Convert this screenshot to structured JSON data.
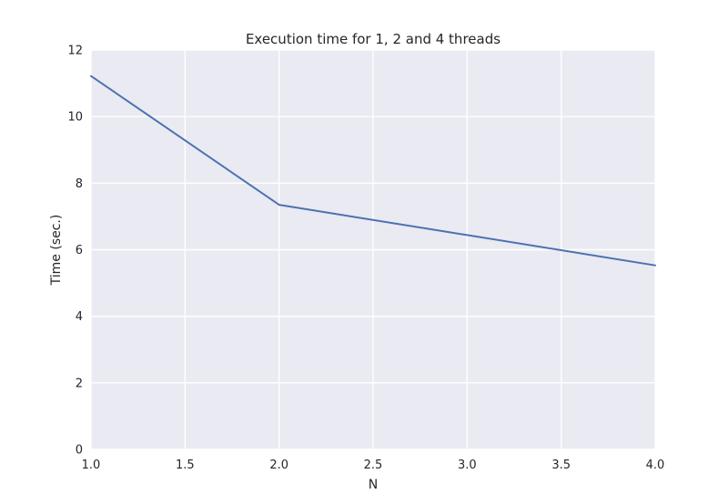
{
  "chart_data": {
    "type": "line",
    "title": "Execution time for 1, 2 and 4 threads",
    "xlabel": "N",
    "ylabel": "Time (sec.)",
    "xlim": [
      1.0,
      4.0
    ],
    "ylim": [
      0,
      12
    ],
    "x_ticks": [
      1.0,
      1.5,
      2.0,
      2.5,
      3.0,
      3.5,
      4.0
    ],
    "x_tick_labels": [
      "1.0",
      "1.5",
      "2.0",
      "2.5",
      "3.0",
      "3.5",
      "4.0"
    ],
    "y_ticks": [
      0,
      2,
      4,
      6,
      8,
      10,
      12
    ],
    "y_tick_labels": [
      "0",
      "2",
      "4",
      "6",
      "8",
      "10",
      "12"
    ],
    "grid": true,
    "series": [
      {
        "x": [
          1,
          2,
          4
        ],
        "y": [
          11.22,
          7.35,
          5.53
        ],
        "color": "#4c72b0"
      }
    ],
    "colors": {
      "plot_background": "#eaeaf2",
      "grid": "#ffffff",
      "line": "#4c72b0"
    }
  }
}
